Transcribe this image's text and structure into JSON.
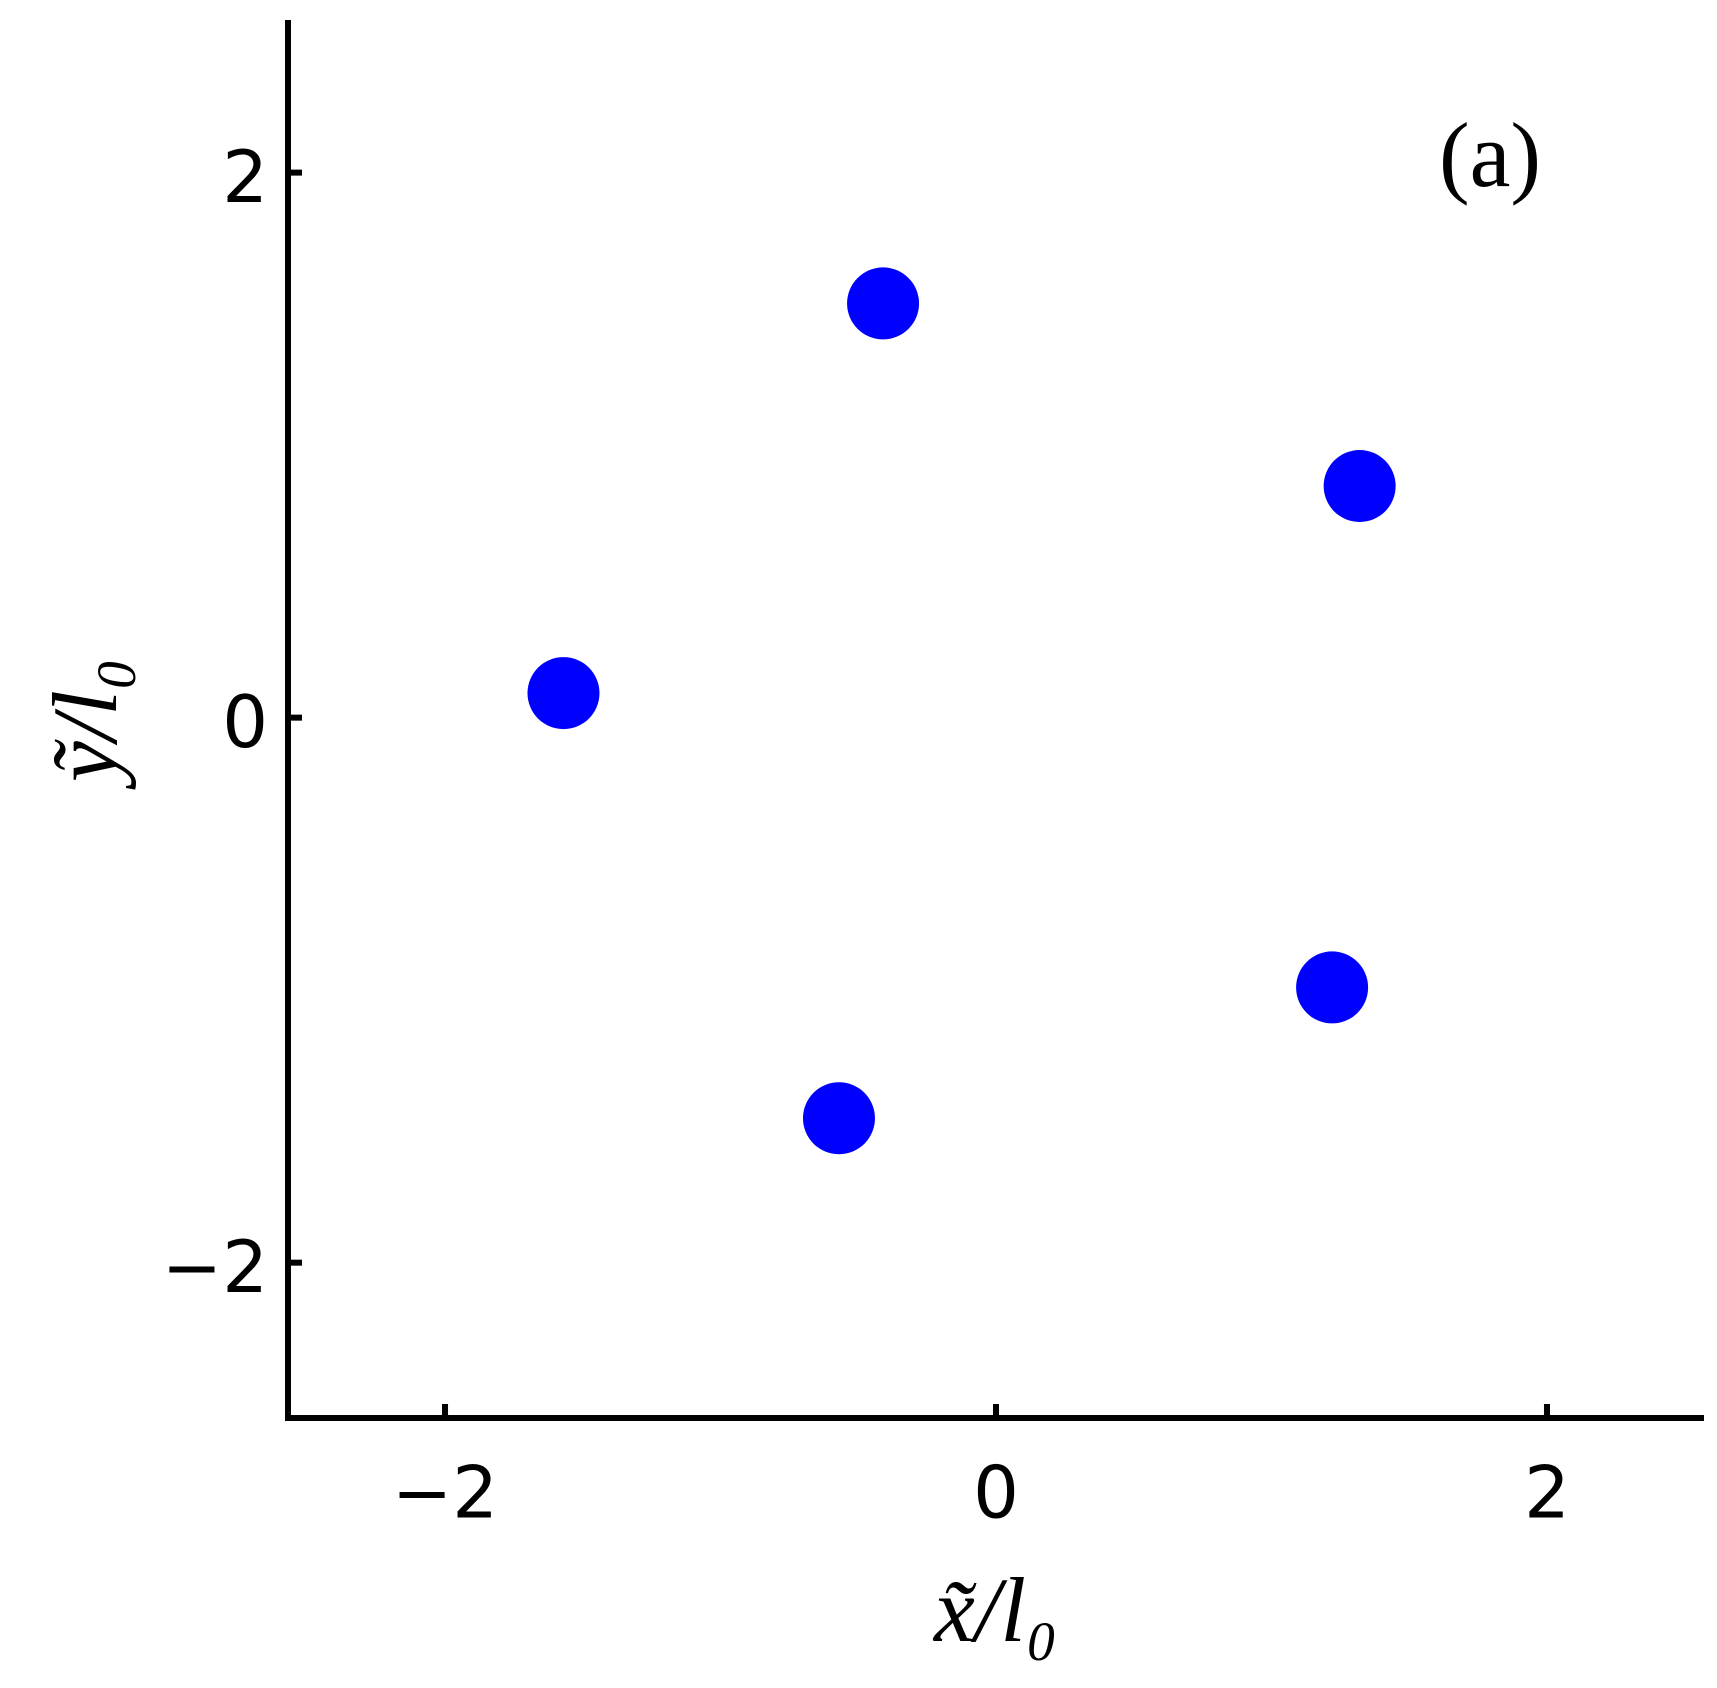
{
  "chart_data": {
    "type": "scatter",
    "annotation": "(a)",
    "x_label": "x̃/l₀",
    "y_label": "ỹ/l₀",
    "x": [
      -0.41,
      1.32,
      -1.57,
      1.22,
      -0.57
    ],
    "values": [
      1.52,
      0.85,
      0.09,
      -0.99,
      -1.47
    ],
    "color": "#0000ff",
    "xlim": [
      -2.57,
      2.57
    ],
    "ylim": [
      -2.57,
      2.56
    ],
    "xticks": [
      {
        "value": -2,
        "label": "−2"
      },
      0,
      2
    ],
    "yticks": [
      {
        "value": -2,
        "label": "−2"
      },
      0,
      2
    ],
    "grid": false
  }
}
